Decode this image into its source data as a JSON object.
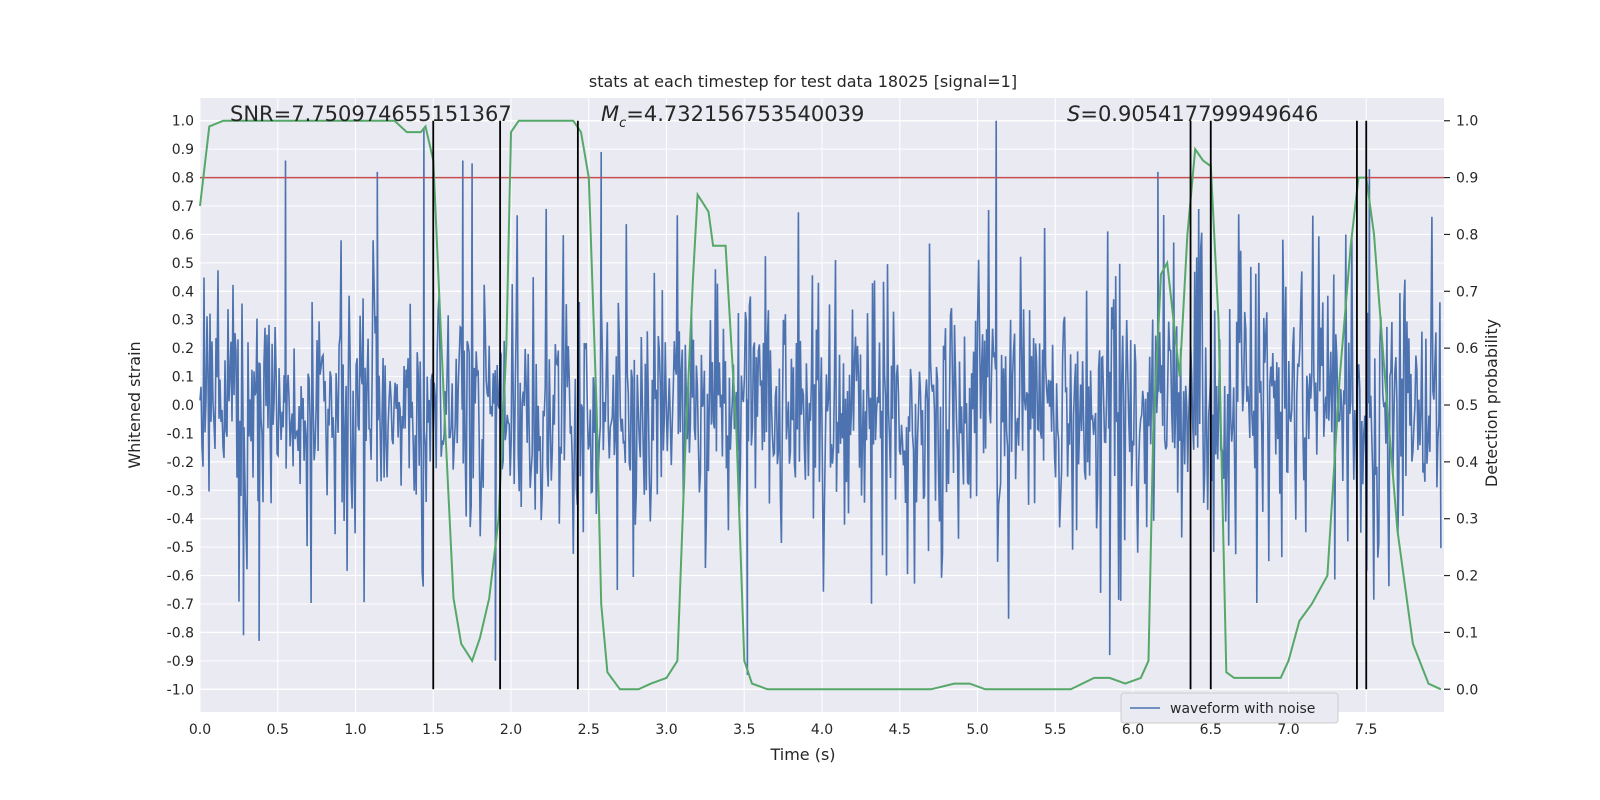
{
  "chart_data": {
    "type": "line",
    "title": "stats at each timestep for test data 18025 [signal=1]",
    "xlabel": "Time (s)",
    "ylabel": "Whitened strain",
    "y2label": "Detection probability",
    "xlim": [
      0.0,
      8.0
    ],
    "ylim": [
      -1.08,
      1.08
    ],
    "y2lim": [
      -0.04,
      1.04
    ],
    "xticks": [
      0.0,
      0.5,
      1.0,
      1.5,
      2.0,
      2.5,
      3.0,
      3.5,
      4.0,
      4.5,
      5.0,
      5.5,
      6.0,
      6.5,
      7.0,
      7.5
    ],
    "xtick_labels": [
      "0.0",
      "0.5",
      "1.0",
      "1.5",
      "2.0",
      "2.5",
      "3.0",
      "3.5",
      "4.0",
      "4.5",
      "5.0",
      "5.5",
      "6.0",
      "6.5",
      "7.0",
      "7.5"
    ],
    "yticks": [
      1.0,
      0.9,
      0.8,
      0.7,
      0.6,
      0.5,
      0.4,
      0.3,
      0.2,
      0.1,
      0.0,
      -0.1,
      -0.2,
      -0.3,
      -0.4,
      -0.5,
      -0.6,
      -0.7,
      -0.8,
      -0.9,
      -1.0
    ],
    "ytick_labels": [
      "1.0",
      "0.9",
      "0.8",
      "0.7",
      "0.6",
      "0.5",
      "0.4",
      "0.3",
      "0.2",
      "0.1",
      "0.0",
      "-0.1",
      "-0.2",
      "-0.3",
      "-0.4",
      "-0.5",
      "-0.6",
      "-0.7",
      "-0.8",
      "-0.9",
      "-1.0"
    ],
    "y2ticks": [
      1.0,
      0.9,
      0.8,
      0.7,
      0.6,
      0.5,
      0.4,
      0.3,
      0.2,
      0.1,
      0.0
    ],
    "y2tick_labels": [
      "1.0",
      "0.9",
      "0.8",
      "0.7",
      "0.6",
      "0.5",
      "0.4",
      "0.3",
      "0.2",
      "0.1",
      "0.0"
    ],
    "annotations": {
      "snr": "SNR=7.750974655151367",
      "mc_symbol": "M",
      "mc_sub": "c",
      "mc_value": "=4.732156753540039",
      "s_symbol": "S",
      "s_value": "=0.905417799949646"
    },
    "legend": {
      "label": "waveform with noise",
      "placement": "lower-right"
    },
    "colors": {
      "background": "#eaeaf2",
      "grid": "#ffffff",
      "waveform": "#4c72b0",
      "probability": "#55a868",
      "threshold": "#c44e52",
      "marker_lines": "#000000"
    },
    "threshold": 0.8,
    "vertical_lines": [
      1.5,
      1.93,
      2.43,
      6.37,
      6.5,
      7.44,
      7.5
    ],
    "waveform": {
      "description_range": "noise amplitude roughly within [-0.6, 0.6] with spikes to about ±1.0",
      "spikes": [
        {
          "x": 0.55,
          "y": 0.86
        },
        {
          "x": 1.14,
          "y": 0.82
        },
        {
          "x": 1.44,
          "y": 0.97
        },
        {
          "x": 1.69,
          "y": 0.86
        },
        {
          "x": 1.75,
          "y": 0.85
        },
        {
          "x": 2.58,
          "y": 0.89
        },
        {
          "x": 5.12,
          "y": 1.0
        },
        {
          "x": 6.16,
          "y": 0.82
        },
        {
          "x": 6.5,
          "y": 0.85
        },
        {
          "x": 7.52,
          "y": 0.83
        },
        {
          "x": 3.52,
          "y": -0.95
        },
        {
          "x": 1.9,
          "y": -0.9
        },
        {
          "x": 5.85,
          "y": -0.88
        },
        {
          "x": 0.28,
          "y": -0.81
        },
        {
          "x": 0.38,
          "y": -0.83
        }
      ]
    },
    "probability_series": {
      "x": [
        0.0,
        0.06,
        0.15,
        0.3,
        0.6,
        0.9,
        1.15,
        1.25,
        1.33,
        1.42,
        1.45,
        1.5,
        1.57,
        1.63,
        1.68,
        1.75,
        1.8,
        1.86,
        1.92,
        1.97,
        2.0,
        2.05,
        2.15,
        2.3,
        2.4,
        2.45,
        2.5,
        2.55,
        2.58,
        2.62,
        2.7,
        2.75,
        2.82,
        2.9,
        3.0,
        3.07,
        3.12,
        3.17,
        3.2,
        3.27,
        3.3,
        3.38,
        3.45,
        3.5,
        3.55,
        3.65,
        3.8,
        4.0,
        4.5,
        4.7,
        4.85,
        4.95,
        5.05,
        5.2,
        5.4,
        5.6,
        5.75,
        5.85,
        5.95,
        6.05,
        6.1,
        6.13,
        6.18,
        6.22,
        6.3,
        6.35,
        6.4,
        6.45,
        6.5,
        6.55,
        6.6,
        6.65,
        6.75,
        6.85,
        6.9,
        6.95,
        7.0,
        7.07,
        7.15,
        7.25,
        7.33,
        7.4,
        7.45,
        7.5,
        7.55,
        7.62,
        7.7,
        7.8,
        7.9,
        7.98
      ],
      "y": [
        0.85,
        0.99,
        1.0,
        1.0,
        1.0,
        1.0,
        1.0,
        1.0,
        0.98,
        0.98,
        0.99,
        0.93,
        0.5,
        0.16,
        0.08,
        0.05,
        0.09,
        0.16,
        0.3,
        0.6,
        0.98,
        1.0,
        1.0,
        1.0,
        1.0,
        0.98,
        0.9,
        0.5,
        0.15,
        0.03,
        0.0,
        0.0,
        0.0,
        0.01,
        0.02,
        0.05,
        0.42,
        0.72,
        0.87,
        0.84,
        0.78,
        0.78,
        0.45,
        0.05,
        0.01,
        0.0,
        0.0,
        0.0,
        0.0,
        0.0,
        0.01,
        0.01,
        0.0,
        0.0,
        0.0,
        0.0,
        0.02,
        0.02,
        0.01,
        0.02,
        0.05,
        0.45,
        0.73,
        0.75,
        0.55,
        0.8,
        0.95,
        0.93,
        0.92,
        0.65,
        0.03,
        0.02,
        0.02,
        0.02,
        0.02,
        0.02,
        0.05,
        0.12,
        0.15,
        0.2,
        0.55,
        0.78,
        0.9,
        0.9,
        0.8,
        0.55,
        0.28,
        0.08,
        0.01,
        0.0
      ]
    }
  }
}
